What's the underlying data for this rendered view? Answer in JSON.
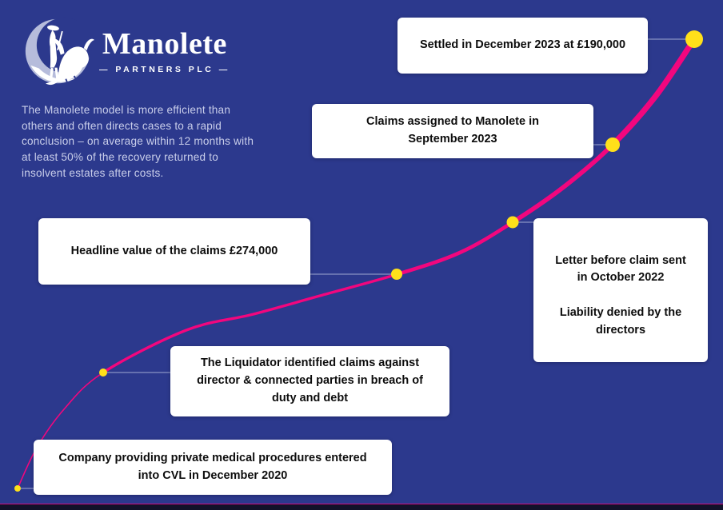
{
  "brand": {
    "name": "Manolete",
    "tagline": "— PARTNERS PLC —"
  },
  "intro": "The Manolete model is more efficient than others and often directs cases to a rapid conclusion – on average within 12 months with at least 50% of the recovery returned to insolvent estates after costs.",
  "milestones": [
    {
      "id": "cvl",
      "label": "Company providing private medical procedures entered into CVL in December 2020"
    },
    {
      "id": "liquidator",
      "label": "The Liquidator identified claims against director & connected parties in breach of duty and debt"
    },
    {
      "id": "headline",
      "label": "Headline value of the claims £274,000"
    },
    {
      "id": "letter",
      "label": "Letter before claim sent in October 2022",
      "label2": "Liability denied by the directors"
    },
    {
      "id": "assigned",
      "label": "Claims assigned to Manolete in September 2023"
    },
    {
      "id": "settled",
      "label": "Settled in December 2023 at £190,000"
    }
  ],
  "colors": {
    "background": "#2C398D",
    "curve": "#F2067E",
    "dot": "#FFE01A",
    "connector": "#A9B1D6",
    "card_bg": "#FFFFFF",
    "card_text": "#0D0D0D",
    "intro_text": "#C9CEEA",
    "logo_crescent": "#B6BCDB",
    "logo_figures": "#FFFFFF"
  }
}
